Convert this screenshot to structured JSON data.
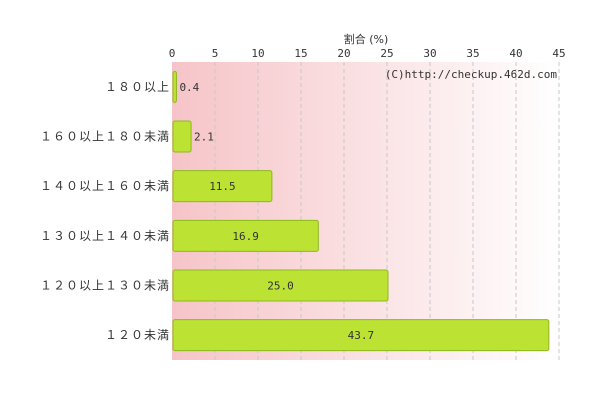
{
  "chart_data": {
    "type": "bar",
    "orientation": "horizontal",
    "xlabel": "割合 (%)",
    "xlim": [
      0,
      45
    ],
    "xticks": [
      0,
      5,
      10,
      15,
      20,
      25,
      30,
      35,
      40,
      45
    ],
    "categories": [
      "180以上",
      "160以上180未満",
      "140以上160未満",
      "130以上140未満",
      "120以上130未満",
      "120未満"
    ],
    "category_labels": [
      "１８０以上",
      "１６０以上１８０未満",
      "１４０以上１６０未満",
      "１３０以上１４０未満",
      "１２０以上１３０未満",
      "１２０未満"
    ],
    "values": [
      0.4,
      2.1,
      11.5,
      16.9,
      25.0,
      43.7
    ],
    "value_labels": [
      "0.4",
      "2.1",
      "11.5",
      "16.9",
      "25.0",
      "43.7"
    ],
    "grid": true,
    "credit": "(C)http://checkup.462d.com",
    "colors": {
      "bar": "#bce234",
      "bar_border": "#8fb81c",
      "background_left": "#f6c4c8",
      "background_right": "#ffffff",
      "grid": "#c8c8c8"
    }
  }
}
